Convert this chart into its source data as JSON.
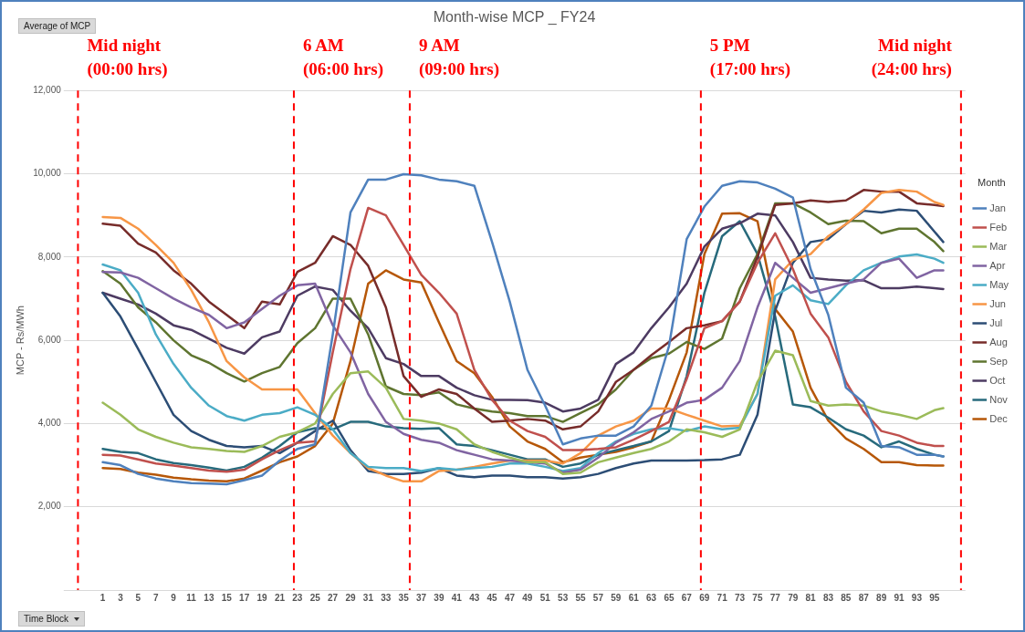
{
  "chart_data": {
    "type": "line",
    "title": "Month-wise MCP _ FY24",
    "ylabel": "MCP - Rs/MWh",
    "legend_title": "Month",
    "legend": "right",
    "grid": "y",
    "marker": "none",
    "line_style": "solid",
    "annotations": [
      "Average of MCP",
      "Time Block",
      "Mid night\n(00:00 hrs)",
      "6 AM\n(06:00 hrs)",
      "9 AM\n(09:00 hrs)",
      "5 PM\n(17:00 hrs)",
      "Mid night\n(24:00 hrs)"
    ],
    "xlim": [
      -3,
      98.5
    ],
    "xticks": [
      1,
      3,
      5,
      7,
      9,
      11,
      13,
      15,
      17,
      19,
      21,
      23,
      25,
      27,
      29,
      31,
      33,
      35,
      37,
      39,
      41,
      43,
      45,
      47,
      49,
      51,
      53,
      55,
      57,
      59,
      61,
      63,
      65,
      67,
      69,
      71,
      73,
      75,
      77,
      79,
      81,
      83,
      85,
      87,
      89,
      91,
      93,
      95
    ],
    "ylim": [
      0,
      12000
    ],
    "yticks": [
      {
        "value": 0,
        "label": null
      },
      {
        "value": 2000,
        "label": "2,000"
      },
      {
        "value": 4000,
        "label": "4,000"
      },
      {
        "value": 6000,
        "label": "6,000"
      },
      {
        "value": 8000,
        "label": "8,000"
      },
      {
        "value": 10000,
        "label": "10,000"
      },
      {
        "value": 12000,
        "label": "12,000"
      }
    ],
    "x": [
      1,
      3,
      5,
      7,
      9,
      11,
      13,
      15,
      17,
      19,
      21,
      23,
      25,
      27,
      29,
      31,
      33,
      35,
      37,
      39,
      41,
      43,
      45,
      47,
      49,
      51,
      53,
      55,
      57,
      59,
      61,
      63,
      65,
      67,
      69,
      71,
      73,
      75,
      77,
      79,
      81,
      83,
      85,
      87,
      89,
      91,
      93,
      95,
      96
    ],
    "ref_lines": [
      {
        "axis": "x",
        "value": -1.8,
        "color": "#ff0000",
        "line_style": "dashed"
      },
      {
        "axis": "x",
        "value": 22.6,
        "color": "#ff0000",
        "line_style": "dashed"
      },
      {
        "axis": "x",
        "value": 35.7,
        "color": "#ff0000",
        "line_style": "dashed"
      },
      {
        "axis": "x",
        "value": 68.6,
        "color": "#ff0000",
        "line_style": "dashed"
      },
      {
        "axis": "x",
        "value": 98,
        "color": "#ff0000",
        "line_style": "dashed"
      }
    ],
    "series": [
      {
        "name": "Jan",
        "color": "#4f81bd",
        "values": [
          3070,
          3000,
          2790,
          2680,
          2610,
          2570,
          2560,
          2540,
          2640,
          2750,
          3110,
          3390,
          3500,
          6140,
          9070,
          9860,
          9860,
          9990,
          9960,
          9860,
          9820,
          9710,
          8360,
          6930,
          5290,
          4430,
          3500,
          3640,
          3710,
          3710,
          3930,
          4430,
          5860,
          8430,
          9210,
          9710,
          9820,
          9790,
          9640,
          9430,
          7710,
          6610,
          4860,
          4500,
          3460,
          3430,
          3250,
          3250,
          3210
        ]
      },
      {
        "name": "Feb",
        "color": "#c0504d",
        "values": [
          3250,
          3230,
          3140,
          3040,
          2990,
          2930,
          2870,
          2840,
          2890,
          3140,
          3360,
          3540,
          3570,
          5710,
          7710,
          9180,
          9000,
          8290,
          7570,
          7140,
          6640,
          5290,
          4570,
          4070,
          3820,
          3680,
          3360,
          3360,
          3390,
          3430,
          3610,
          3820,
          4040,
          5070,
          6290,
          6460,
          6930,
          7860,
          8570,
          7710,
          6640,
          6070,
          5000,
          4290,
          3820,
          3710,
          3540,
          3460,
          3460
        ]
      },
      {
        "name": "Mar",
        "color": "#9bbb59",
        "values": [
          4500,
          4210,
          3860,
          3680,
          3540,
          3430,
          3390,
          3340,
          3320,
          3460,
          3680,
          3790,
          4000,
          4710,
          5210,
          5250,
          4860,
          4110,
          4070,
          4000,
          3860,
          3500,
          3320,
          3180,
          3070,
          3070,
          2790,
          2820,
          3070,
          3180,
          3290,
          3390,
          3570,
          3860,
          3790,
          3680,
          3860,
          5000,
          5750,
          5640,
          4540,
          4430,
          4460,
          4430,
          4290,
          4210,
          4110,
          4320,
          4370
        ]
      },
      {
        "name": "Apr",
        "color": "#8064a2",
        "values": [
          7640,
          7630,
          7500,
          7250,
          7000,
          6790,
          6610,
          6290,
          6430,
          6750,
          7070,
          7320,
          7360,
          6360,
          5710,
          4710,
          4040,
          3750,
          3610,
          3540,
          3360,
          3250,
          3140,
          3110,
          3070,
          3040,
          2820,
          2890,
          3180,
          3540,
          3790,
          4110,
          4290,
          4500,
          4570,
          4860,
          5500,
          6790,
          7860,
          7500,
          7140,
          7250,
          7360,
          7460,
          7860,
          7960,
          7500,
          7680,
          7680
        ]
      },
      {
        "name": "May",
        "color": "#4bacc6",
        "values": [
          7820,
          7680,
          7140,
          6140,
          5430,
          4860,
          4430,
          4180,
          4070,
          4210,
          4250,
          4390,
          4210,
          3860,
          3290,
          2960,
          2930,
          2930,
          2860,
          2930,
          2890,
          2930,
          2960,
          3040,
          3040,
          2960,
          2860,
          2930,
          3290,
          3570,
          3750,
          3860,
          3890,
          3820,
          3930,
          3860,
          3900,
          4710,
          7070,
          7320,
          6960,
          6870,
          7320,
          7680,
          7860,
          8010,
          8060,
          7960,
          7860
        ]
      },
      {
        "name": "Jun",
        "color": "#f79646",
        "values": [
          8960,
          8940,
          8680,
          8290,
          7860,
          7210,
          6430,
          5500,
          5110,
          4820,
          4820,
          4820,
          4250,
          3710,
          3290,
          2930,
          2750,
          2610,
          2610,
          2860,
          2890,
          2960,
          3040,
          3110,
          3110,
          3110,
          3040,
          3290,
          3710,
          3930,
          4070,
          4360,
          4360,
          4210,
          4070,
          3930,
          3950,
          4710,
          7460,
          7930,
          8070,
          8500,
          8790,
          9140,
          9540,
          9610,
          9570,
          9320,
          9250
        ]
      },
      {
        "name": "Jul",
        "color": "#2c4d75",
        "values": [
          7140,
          6570,
          5790,
          5000,
          4210,
          3820,
          3610,
          3460,
          3430,
          3460,
          3290,
          3540,
          3820,
          4070,
          3360,
          2860,
          2790,
          2790,
          2820,
          2930,
          2750,
          2710,
          2750,
          2750,
          2710,
          2710,
          2680,
          2710,
          2790,
          2930,
          3040,
          3110,
          3110,
          3110,
          3120,
          3140,
          3250,
          4210,
          6710,
          7860,
          8360,
          8430,
          8790,
          9110,
          9070,
          9140,
          9110,
          8610,
          8360
        ]
      },
      {
        "name": "Aug",
        "color": "#772c2a",
        "values": [
          8800,
          8750,
          8320,
          8110,
          7680,
          7360,
          6930,
          6610,
          6290,
          6930,
          6860,
          7640,
          7860,
          8500,
          8290,
          7790,
          6790,
          5140,
          4640,
          4820,
          4710,
          4360,
          4040,
          4070,
          4110,
          4070,
          3860,
          3930,
          4290,
          5000,
          5290,
          5640,
          5960,
          6290,
          6360,
          6460,
          6930,
          8000,
          9250,
          9290,
          9360,
          9320,
          9360,
          9610,
          9570,
          9570,
          9290,
          9250,
          9220
        ]
      },
      {
        "name": "Sep",
        "color": "#5f7530",
        "values": [
          7660,
          7360,
          6790,
          6430,
          6000,
          5640,
          5460,
          5210,
          5010,
          5210,
          5360,
          5930,
          6290,
          7000,
          7000,
          6140,
          4890,
          4710,
          4680,
          4750,
          4460,
          4360,
          4290,
          4250,
          4180,
          4180,
          4040,
          4250,
          4460,
          4820,
          5290,
          5570,
          5680,
          5960,
          5790,
          6040,
          7250,
          8070,
          9290,
          9290,
          9070,
          8790,
          8870,
          8860,
          8570,
          8680,
          8680,
          8360,
          8140
        ]
      },
      {
        "name": "Oct",
        "color": "#4d3b62",
        "values": [
          7140,
          7000,
          6860,
          6640,
          6360,
          6250,
          6040,
          5820,
          5680,
          6070,
          6210,
          7070,
          7290,
          7210,
          6710,
          6290,
          5570,
          5430,
          5140,
          5140,
          4860,
          4680,
          4570,
          4570,
          4560,
          4500,
          4290,
          4360,
          4570,
          5430,
          5710,
          6290,
          6790,
          7360,
          8250,
          8680,
          8810,
          9040,
          9000,
          8360,
          7500,
          7460,
          7430,
          7440,
          7250,
          7250,
          7290,
          7250,
          7230
        ]
      },
      {
        "name": "Nov",
        "color": "#276a7c",
        "values": [
          3390,
          3320,
          3290,
          3140,
          3050,
          3000,
          2940,
          2870,
          2960,
          3180,
          3460,
          3790,
          3890,
          3860,
          4040,
          4040,
          3930,
          3890,
          3870,
          3890,
          3500,
          3460,
          3360,
          3250,
          3140,
          3140,
          2960,
          3040,
          3250,
          3360,
          3460,
          3570,
          3820,
          5140,
          7140,
          8500,
          8860,
          8070,
          6570,
          4460,
          4390,
          4140,
          3860,
          3710,
          3430,
          3570,
          3390,
          3250,
          3210
        ]
      },
      {
        "name": "Dec",
        "color": "#b65708",
        "values": [
          2930,
          2910,
          2820,
          2770,
          2700,
          2660,
          2630,
          2610,
          2680,
          2870,
          3070,
          3210,
          3460,
          4000,
          5500,
          7360,
          7680,
          7460,
          7390,
          6430,
          5500,
          5210,
          4640,
          3930,
          3570,
          3390,
          3070,
          3180,
          3250,
          3320,
          3430,
          3570,
          4570,
          5710,
          8070,
          9040,
          9050,
          8860,
          6750,
          6210,
          4860,
          4070,
          3640,
          3390,
          3070,
          3070,
          3000,
          2990,
          2990
        ]
      }
    ]
  }
}
